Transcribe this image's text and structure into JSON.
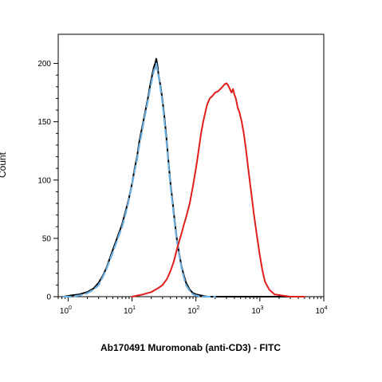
{
  "chart_data": {
    "type": "line",
    "xlabel": "Ab170491 Muromonab (anti-CD3) - FITC",
    "ylabel": "Count",
    "x_scale": "log",
    "xlim": [
      0.7,
      10000
    ],
    "ylim": [
      0,
      225
    ],
    "y_ticks": [
      0,
      50,
      100,
      150,
      200
    ],
    "x_ticks": [
      {
        "value": 1,
        "base": "10",
        "exp": "0"
      },
      {
        "value": 10,
        "base": "10",
        "exp": "1"
      },
      {
        "value": 100,
        "base": "10",
        "exp": "2"
      },
      {
        "value": 1000,
        "base": "10",
        "exp": "3"
      },
      {
        "value": 10000,
        "base": "10",
        "exp": "4"
      }
    ],
    "grid": false,
    "legend": "none",
    "series": [
      {
        "color": "#000000",
        "style": "solid",
        "x": [
          0.85,
          1.1,
          1.5,
          2,
          2.5,
          3,
          3.5,
          4,
          5,
          6,
          7,
          8,
          9,
          10,
          11,
          12,
          13,
          14,
          15,
          16,
          17,
          18,
          19,
          20,
          21,
          22,
          23,
          24,
          25,
          26,
          27,
          28,
          30,
          32,
          34,
          36,
          38,
          40,
          43,
          46,
          50,
          55,
          60,
          65,
          70,
          80,
          90,
          100,
          120,
          150,
          200,
          300,
          500,
          1000,
          3000
        ],
        "y": [
          0,
          1,
          2,
          4,
          7,
          12,
          18,
          25,
          40,
          52,
          62,
          74,
          85,
          97,
          110,
          120,
          133,
          142,
          150,
          158,
          165,
          172,
          180,
          186,
          192,
          197,
          200,
          204,
          198,
          190,
          185,
          180,
          168,
          155,
          140,
          125,
          110,
          97,
          82,
          67,
          50,
          36,
          25,
          18,
          12,
          6,
          3,
          2,
          1,
          0,
          0,
          0,
          0,
          0,
          0
        ]
      },
      {
        "color": "#6aaee0",
        "style": "dashed",
        "x": [
          0.85,
          1.1,
          1.5,
          2,
          2.5,
          3,
          3.5,
          4,
          5,
          6,
          7,
          8,
          9,
          10,
          11,
          12,
          13,
          14,
          15,
          16,
          17,
          18,
          19,
          20,
          21,
          22,
          23,
          24,
          25,
          26,
          27,
          28,
          30,
          32,
          34,
          36,
          38,
          40,
          43,
          46,
          50,
          55,
          60,
          65,
          70,
          80,
          90,
          100,
          120,
          150,
          200
        ],
        "y": [
          0,
          0,
          1,
          3,
          6,
          10,
          17,
          24,
          38,
          50,
          60,
          72,
          84,
          96,
          108,
          118,
          130,
          139,
          148,
          156,
          163,
          170,
          177,
          183,
          189,
          194,
          196,
          200,
          194,
          189,
          184,
          178,
          166,
          152,
          137,
          123,
          108,
          95,
          80,
          65,
          49,
          35,
          24,
          16,
          10,
          5,
          2,
          1,
          0,
          0,
          0
        ]
      },
      {
        "color": "#e01e1e",
        "style": "solid",
        "x": [
          10,
          15,
          20,
          25,
          30,
          35,
          40,
          45,
          50,
          55,
          60,
          65,
          70,
          80,
          90,
          100,
          110,
          120,
          130,
          140,
          150,
          165,
          180,
          200,
          220,
          240,
          260,
          280,
          300,
          320,
          340,
          360,
          380,
          400,
          420,
          450,
          480,
          520,
          560,
          600,
          650,
          700,
          750,
          800,
          900,
          1000,
          1100,
          1200,
          1400,
          1700,
          2200,
          3000,
          5000
        ],
        "y": [
          0,
          2,
          4,
          7,
          10,
          15,
          22,
          30,
          40,
          48,
          55,
          62,
          68,
          80,
          95,
          110,
          125,
          140,
          150,
          158,
          165,
          170,
          172,
          175,
          176,
          178,
          180,
          182,
          183,
          181,
          178,
          175,
          178,
          173,
          170,
          162,
          158,
          150,
          140,
          128,
          112,
          98,
          85,
          72,
          52,
          35,
          22,
          13,
          6,
          2,
          1,
          0,
          0
        ]
      }
    ]
  }
}
